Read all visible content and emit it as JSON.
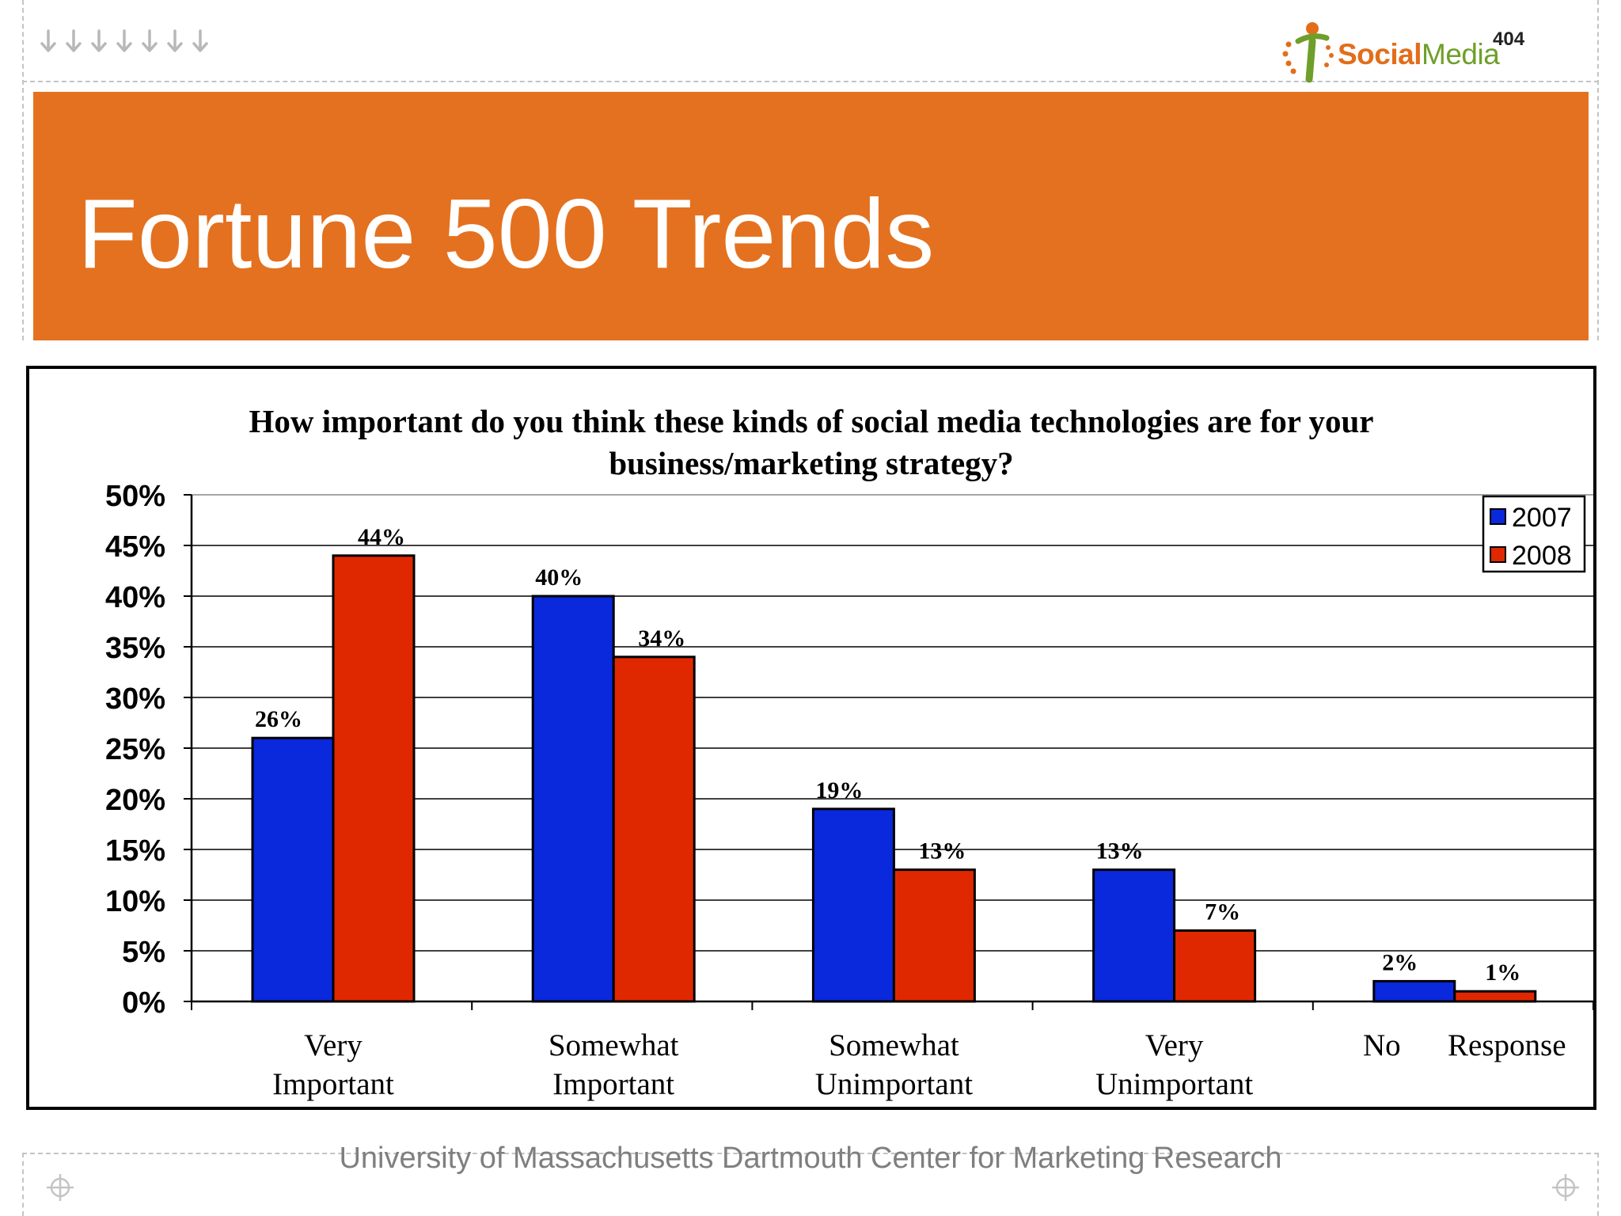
{
  "slide": {
    "title": "Fortune 500 Trends",
    "footer": "University of Massachusetts Dartmouth Center for Marketing Research"
  },
  "logo": {
    "word_bold": "Social",
    "word_light": "Media",
    "number": "404"
  },
  "decor": {
    "arrow_count": 7,
    "arrow_icon": "arrow-down-icon",
    "crosshair_icon": "crosshair-icon"
  },
  "colors": {
    "banner": "#e4711f",
    "series_2007": "#0a28dc",
    "series_2008": "#e02800",
    "logo_orange": "#e36d1a",
    "logo_green": "#6f9f2a"
  },
  "chart_data": {
    "type": "bar",
    "title_lines": [
      "How important do you think these kinds of social media technologies are for your",
      "business/marketing strategy?"
    ],
    "categories": [
      [
        "Very",
        "Important"
      ],
      [
        "Somewhat",
        "Important"
      ],
      [
        "Somewhat",
        "Unimportant"
      ],
      [
        "Very",
        "Unimportant"
      ],
      [
        "No",
        "Response"
      ]
    ],
    "series": [
      {
        "name": "2007",
        "values": [
          26,
          40,
          19,
          13,
          2
        ],
        "labels": [
          "26%",
          "40%",
          "19%",
          "13%",
          "2%"
        ]
      },
      {
        "name": "2008",
        "values": [
          44,
          34,
          13,
          7,
          1
        ],
        "labels": [
          "44%",
          "34%",
          "13%",
          "7%",
          "1%"
        ]
      }
    ],
    "ylim": [
      0,
      50
    ],
    "y_ticks": [
      0,
      5,
      10,
      15,
      20,
      25,
      30,
      35,
      40,
      45,
      50
    ],
    "y_tick_labels": [
      "0%",
      "5%",
      "10%",
      "15%",
      "20%",
      "25%",
      "30%",
      "35%",
      "40%",
      "45%",
      "50%"
    ],
    "gridlines": true,
    "legend_position": "top-right",
    "xlabel": "",
    "ylabel": ""
  }
}
